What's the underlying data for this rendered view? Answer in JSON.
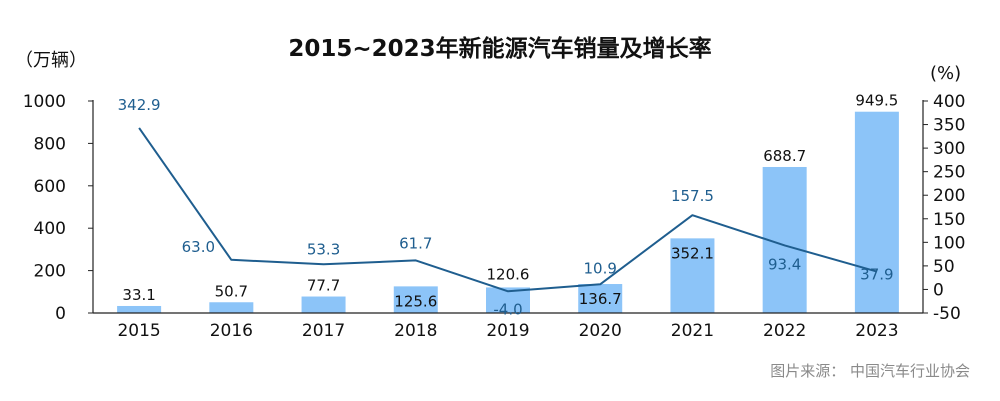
{
  "chart_data": {
    "type": "bar",
    "title": "2015~2023年新能源汽车销量及增长率",
    "categories": [
      "2015",
      "2016",
      "2017",
      "2018",
      "2019",
      "2020",
      "2021",
      "2022",
      "2023"
    ],
    "series": [
      {
        "kind": "bar",
        "axis": "left",
        "values": [
          33.1,
          50.7,
          77.7,
          125.6,
          120.6,
          136.7,
          352.1,
          688.7,
          949.5
        ]
      },
      {
        "kind": "line",
        "axis": "right",
        "values": [
          342.9,
          63.0,
          53.3,
          61.7,
          -4.0,
          10.9,
          157.5,
          93.4,
          37.9
        ]
      }
    ],
    "bar_labels": [
      "33.1",
      "50.7",
      "77.7",
      "125.6",
      "120.6",
      "136.7",
      "352.1",
      "688.7",
      "949.5"
    ],
    "line_labels": [
      "342.9",
      "63.0",
      "53.3",
      "61.7",
      "-4.0",
      "10.9",
      "157.5",
      "93.4",
      "37.9"
    ],
    "ylabel_left": "（万辆）",
    "ylabel_right": "(%)",
    "ylim_left": [
      0,
      1000
    ],
    "ylim_right": [
      -50,
      400
    ],
    "yticks_left": [
      "0",
      "200",
      "400",
      "600",
      "800",
      "1000"
    ],
    "yticks_right": [
      "-50",
      "0",
      "50",
      "100",
      "150",
      "200",
      "250",
      "300",
      "350",
      "400"
    ],
    "grid": false,
    "legend": "none",
    "colors": {
      "bar": "#8cc4f8",
      "line": "#1f5e8f",
      "line_label": "#1f5e8f",
      "axis": "#222222"
    }
  },
  "source_text": "图片来源：  中国汽车行业协会"
}
